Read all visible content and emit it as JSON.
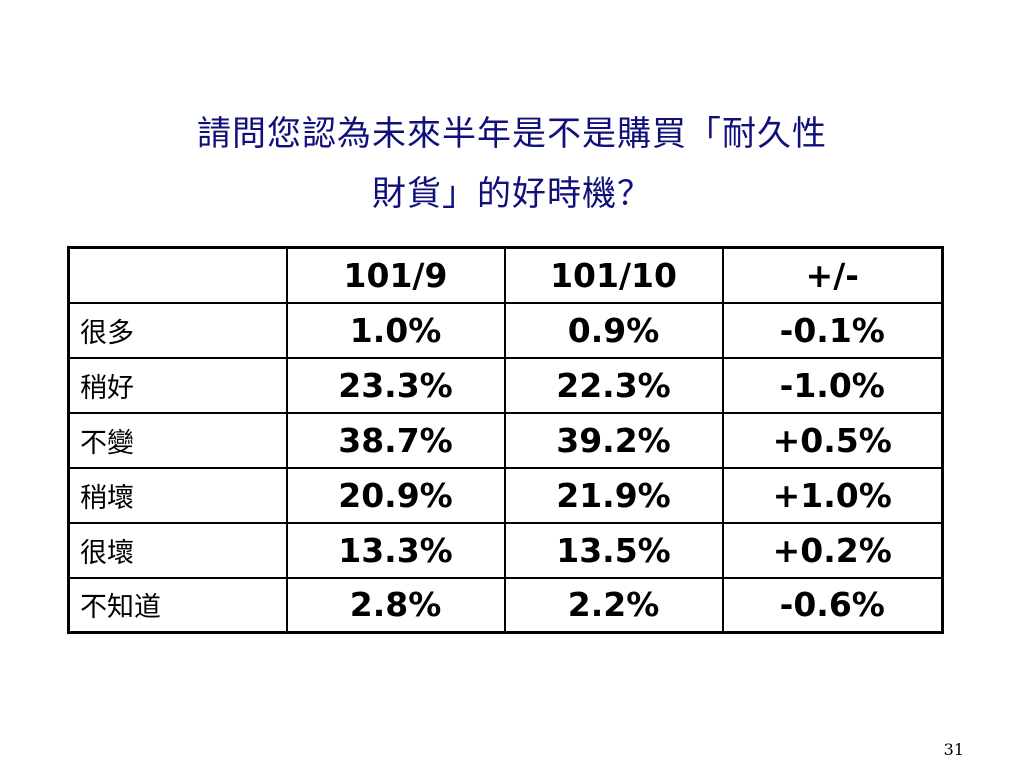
{
  "title": {
    "line1": "請問您認為未來半年是不是購買「耐久性",
    "line2": "財貨」的好時機？"
  },
  "table": {
    "header": {
      "corner": "",
      "col1": "101/9",
      "col2": "101/10",
      "col3": "+/-"
    },
    "rows": [
      {
        "label": "很多",
        "v1": "1.0%",
        "v2": "0.9%",
        "change": "-0.1%"
      },
      {
        "label": "稍好",
        "v1": "23.3%",
        "v2": "22.3%",
        "change": "-1.0%"
      },
      {
        "label": "不變",
        "v1": "38.7%",
        "v2": "39.2%",
        "change": "+0.5%"
      },
      {
        "label": "稍壞",
        "v1": "20.9%",
        "v2": "21.9%",
        "change": "+1.0%"
      },
      {
        "label": "很壞",
        "v1": "13.3%",
        "v2": "13.5%",
        "change": "+0.2%"
      },
      {
        "label": "不知道",
        "v1": "2.8%",
        "v2": "2.2%",
        "change": "-0.6%"
      }
    ]
  },
  "page_number": "31",
  "colors": {
    "title": "#10107a",
    "text": "#000000",
    "border": "#000000",
    "background": "#ffffff"
  }
}
